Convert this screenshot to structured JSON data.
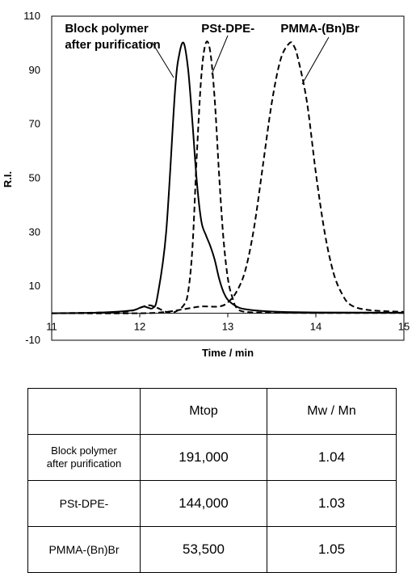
{
  "chart_data": {
    "type": "line",
    "xlabel": "Time / min",
    "ylabel": "R.I.",
    "xlim": [
      11,
      15
    ],
    "ylim": [
      -10,
      110
    ],
    "xticks": [
      11,
      12,
      13,
      14,
      15
    ],
    "yticks": [
      -10,
      10,
      30,
      50,
      70,
      90,
      110
    ],
    "grid": false,
    "legend": "none",
    "series": [
      {
        "style": "solid",
        "x": [
          11.0,
          11.5,
          11.9,
          12.0,
          12.05,
          12.1,
          12.15,
          12.2,
          12.3,
          12.4,
          12.45,
          12.5,
          12.55,
          12.6,
          12.65,
          12.7,
          12.75,
          12.8,
          12.85,
          12.9,
          12.95,
          13.0,
          13.1,
          13.2,
          13.4,
          13.6,
          14.0,
          15.0
        ],
        "y": [
          0,
          0.2,
          1,
          2,
          2.5,
          2,
          2,
          6,
          30,
          82,
          96,
          100,
          90,
          70,
          48,
          34,
          29,
          25,
          20,
          13,
          8,
          5,
          2.5,
          1.5,
          0.8,
          0.5,
          0.3,
          0.2
        ]
      },
      {
        "style": "dashed",
        "x": [
          11.0,
          11.8,
          12.0,
          12.1,
          12.2,
          12.3,
          12.4,
          12.5,
          12.55,
          12.6,
          12.65,
          12.7,
          12.75,
          12.8,
          12.85,
          12.9,
          12.95,
          13.0,
          13.05,
          13.1,
          13.2,
          13.5,
          14.0,
          15.0
        ],
        "y": [
          0,
          0.5,
          2,
          3,
          2,
          0.5,
          0.5,
          3,
          8,
          25,
          60,
          88,
          100,
          97,
          80,
          52,
          28,
          13,
          6,
          2,
          0.5,
          0.2,
          0.1,
          0.1
        ]
      },
      {
        "style": "dashed",
        "x": [
          11.0,
          12.0,
          12.3,
          12.5,
          12.7,
          12.9,
          13.0,
          13.1,
          13.2,
          13.3,
          13.4,
          13.5,
          13.6,
          13.7,
          13.75,
          13.8,
          13.9,
          14.0,
          14.1,
          14.2,
          14.3,
          14.4,
          14.6,
          15.0
        ],
        "y": [
          0,
          0,
          0.5,
          1.5,
          2.5,
          2.5,
          4,
          8,
          16,
          32,
          55,
          78,
          94,
          100,
          99,
          94,
          78,
          52,
          30,
          15,
          7,
          3,
          1.2,
          0.5
        ]
      }
    ],
    "annotations": [
      {
        "text": "Block polymer",
        "x": 11.15,
        "y": 104
      },
      {
        "text": "after purification",
        "x": 11.15,
        "y": 98
      },
      {
        "text": "PSt-DPE-",
        "x": 12.7,
        "y": 104
      },
      {
        "text": "PMMA-(Bn)Br",
        "x": 13.6,
        "y": 104
      }
    ]
  },
  "table": {
    "headers": [
      "",
      "Mtop",
      "Mw / Mn"
    ],
    "rows": [
      {
        "label_line1": "Block polymer",
        "label_line2": "after purification",
        "mtop": "191,000",
        "mwmn": "1.04"
      },
      {
        "label_line1": "PSt-DPE-",
        "label_line2": "",
        "mtop": "144,000",
        "mwmn": "1.03"
      },
      {
        "label_line1": "PMMA-(Bn)Br",
        "label_line2": "",
        "mtop": "53,500",
        "mwmn": "1.05"
      }
    ]
  }
}
